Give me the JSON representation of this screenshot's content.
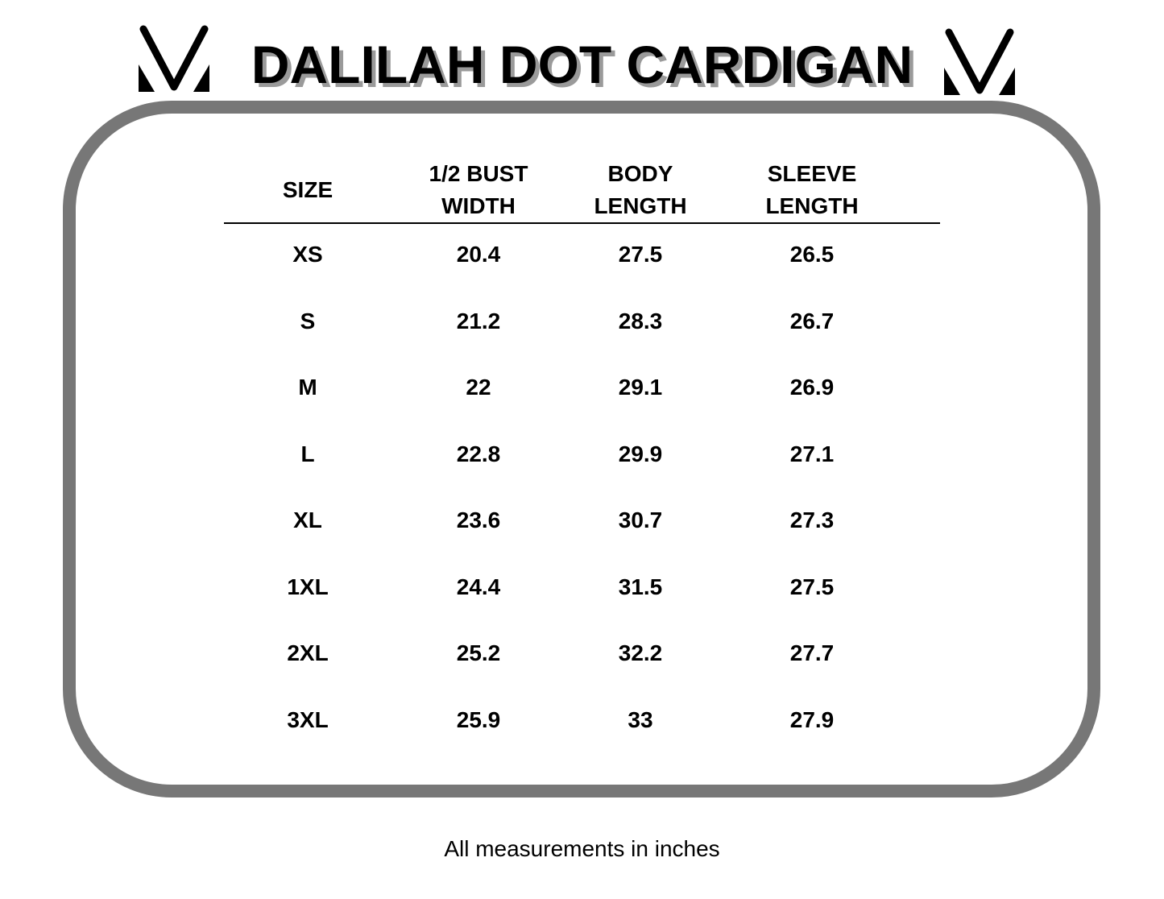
{
  "title": "DALILAH DOT CARDIGAN",
  "logo": {
    "icon": "v-monogram-logo"
  },
  "table": {
    "headers": [
      {
        "line1": "SIZE",
        "line2": ""
      },
      {
        "line1": "1/2 BUST",
        "line2": "WIDTH"
      },
      {
        "line1": "BODY",
        "line2": "LENGTH"
      },
      {
        "line1": "SLEEVE",
        "line2": "LENGTH"
      }
    ],
    "rows": [
      [
        "XS",
        "20.4",
        "27.5",
        "26.5"
      ],
      [
        "S",
        "21.2",
        "28.3",
        "26.7"
      ],
      [
        "M",
        "22",
        "29.1",
        "26.9"
      ],
      [
        "L",
        "22.8",
        "29.9",
        "27.1"
      ],
      [
        "XL",
        "23.6",
        "30.7",
        "27.3"
      ],
      [
        "1XL",
        "24.4",
        "31.5",
        "27.5"
      ],
      [
        "2XL",
        "25.2",
        "32.2",
        "27.7"
      ],
      [
        "3XL",
        "25.9",
        "33",
        "27.9"
      ]
    ]
  },
  "footnote": "All measurements in inches",
  "colors": {
    "frame": "#777777",
    "title_shadow": "#9a9a9a"
  }
}
